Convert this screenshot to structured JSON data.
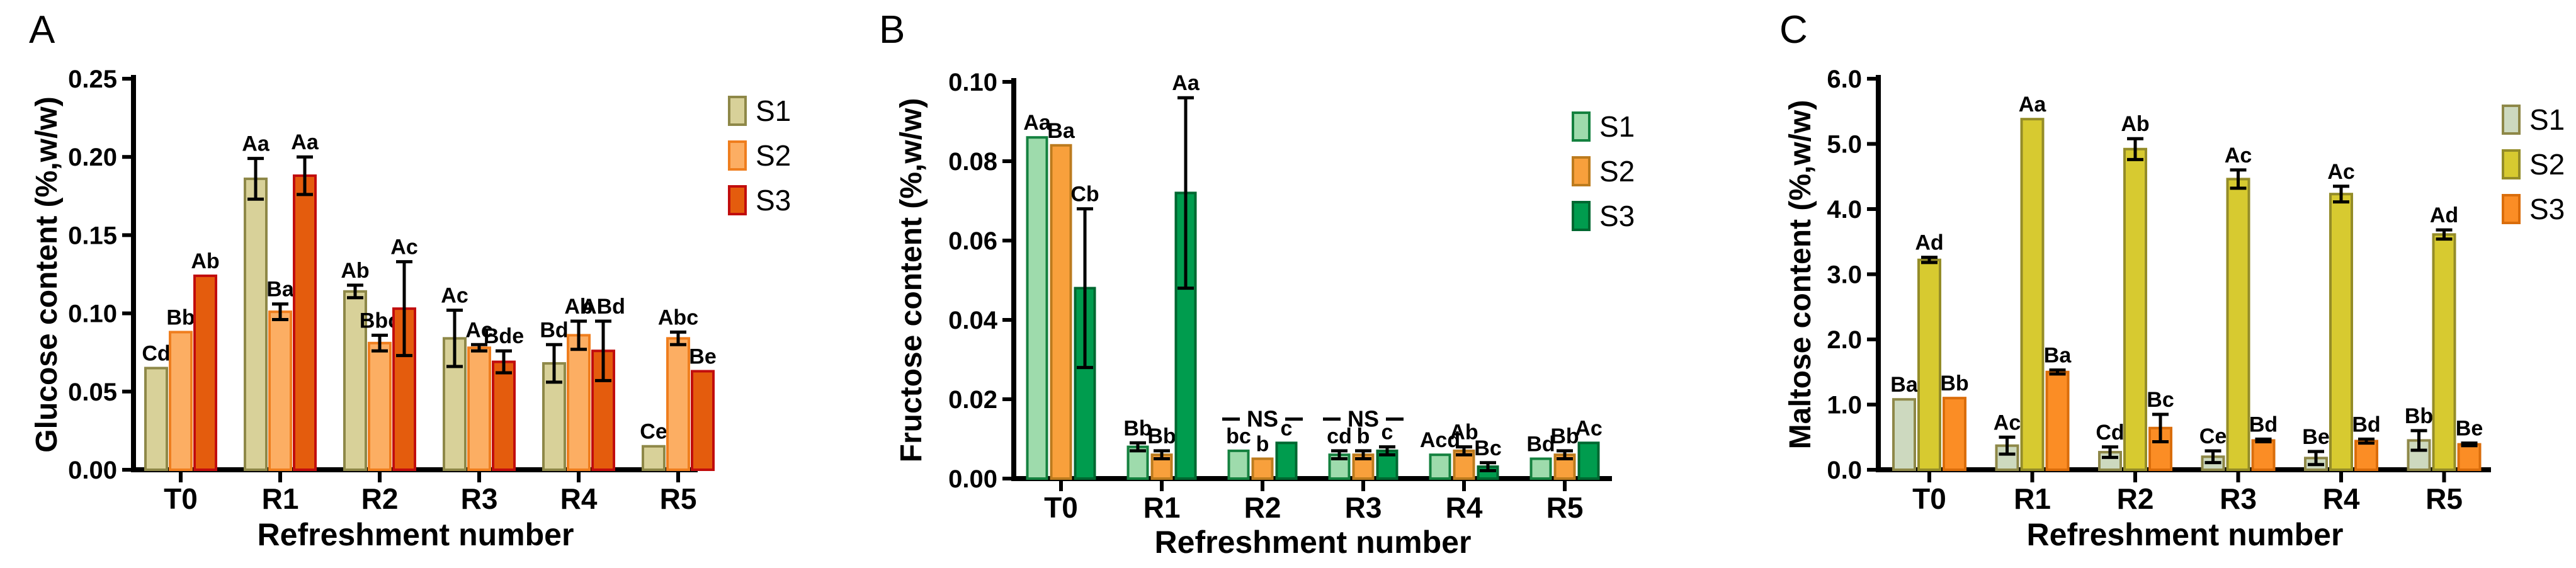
{
  "figure": {
    "background": "#ffffff",
    "x_axis_title": "Refreshment number",
    "categories": [
      "T0",
      "R1",
      "R2",
      "R3",
      "R4",
      "R5"
    ]
  },
  "chart_data": [
    {
      "type": "bar",
      "panel_letter": "A",
      "ylabel": "Glucose content (%,w/w)",
      "xlabel": "Refreshment number",
      "categories": [
        "T0",
        "R1",
        "R2",
        "R3",
        "R4",
        "R5"
      ],
      "ylim": [
        0,
        0.25
      ],
      "ytick_step": 0.05,
      "ytick_decimals": 2,
      "grid": false,
      "legend_position": "right",
      "series": [
        {
          "name": "S1",
          "fill": "#d8d199",
          "stroke": "#8e8848",
          "values": [
            0.065,
            0.186,
            0.114,
            0.084,
            0.068,
            0.015
          ],
          "errors": [
            0,
            0.013,
            0.004,
            0.018,
            0.012,
            0
          ],
          "labels": [
            "Cd",
            "Aa",
            "Ab",
            "Ac",
            "Bd",
            "Ce"
          ]
        },
        {
          "name": "S2",
          "fill": "#fcae63",
          "stroke": "#ef7e1e",
          "values": [
            0.088,
            0.101,
            0.081,
            0.078,
            0.086,
            0.084
          ],
          "errors": [
            0,
            0.005,
            0.005,
            0.002,
            0.009,
            0.004
          ],
          "labels": [
            "Bb",
            "Ba",
            "Bbc",
            "Ac",
            "Ab",
            "Abc"
          ]
        },
        {
          "name": "S3",
          "fill": "#e45c0d",
          "stroke": "#c10d0d",
          "values": [
            0.124,
            0.188,
            0.103,
            0.069,
            0.076,
            0.063
          ],
          "errors": [
            0,
            0.012,
            0.03,
            0.007,
            0.019,
            0
          ],
          "labels": [
            "Ab",
            "Aa",
            "Ac",
            "Bde",
            "ABd",
            "Be"
          ]
        }
      ],
      "ns_annotations": []
    },
    {
      "type": "bar",
      "panel_letter": "B",
      "ylabel": "Fructose content (%,w/w)",
      "xlabel": "Refreshment number",
      "categories": [
        "T0",
        "R1",
        "R2",
        "R3",
        "R4",
        "R5"
      ],
      "ylim": [
        0,
        0.1
      ],
      "ytick_step": 0.02,
      "ytick_decimals": 2,
      "grid": false,
      "legend_position": "right",
      "series": [
        {
          "name": "S1",
          "fill": "#9edbac",
          "stroke": "#14813f",
          "values": [
            0.086,
            0.008,
            0.007,
            0.006,
            0.006,
            0.005
          ],
          "errors": [
            0,
            0.001,
            0,
            0.001,
            0,
            0
          ],
          "labels": [
            "Aa",
            "Bb",
            "bc",
            "cd",
            "Acd",
            "Bd"
          ]
        },
        {
          "name": "S2",
          "fill": "#f8a03c",
          "stroke": "#bc7b1e",
          "values": [
            0.084,
            0.006,
            0.005,
            0.006,
            0.007,
            0.006
          ],
          "errors": [
            0,
            0.001,
            0,
            0.001,
            0.001,
            0.001
          ],
          "labels": [
            "Ba",
            "Bb",
            "b",
            "b",
            "Ab",
            "Bb"
          ]
        },
        {
          "name": "S3",
          "fill": "#009c4e",
          "stroke": "#006730",
          "values": [
            0.048,
            0.072,
            0.009,
            0.007,
            0.003,
            0.009
          ],
          "errors": [
            0.02,
            0.024,
            0,
            0.001,
            0.001,
            0
          ],
          "labels": [
            "Cb",
            "Aa",
            "c",
            "c",
            "Bc",
            "Ac"
          ]
        }
      ],
      "ns_annotations": [
        {
          "category_index": 2,
          "y": 0.015,
          "label": "NS"
        },
        {
          "category_index": 3,
          "y": 0.015,
          "label": "NS"
        }
      ]
    },
    {
      "type": "bar",
      "panel_letter": "C",
      "ylabel": "Maltose content (%,w/w)",
      "xlabel": "Refreshment number",
      "categories": [
        "T0",
        "R1",
        "R2",
        "R3",
        "R4",
        "R5"
      ],
      "ylim": [
        0,
        6.0
      ],
      "ytick_step": 1.0,
      "ytick_decimals": 1,
      "grid": false,
      "legend_position": "right",
      "series": [
        {
          "name": "S1",
          "fill": "#cdd9bf",
          "stroke": "#8e8848",
          "values": [
            1.08,
            0.37,
            0.27,
            0.2,
            0.18,
            0.45
          ],
          "errors": [
            0,
            0.13,
            0.08,
            0.09,
            0.1,
            0.15
          ],
          "labels": [
            "Ba",
            "Ac",
            "Cd",
            "Ce",
            "Be",
            "Bb"
          ]
        },
        {
          "name": "S2",
          "fill": "#d7ca30",
          "stroke": "#948c28",
          "values": [
            3.22,
            5.38,
            4.92,
            4.46,
            4.23,
            3.61
          ],
          "errors": [
            0.04,
            0,
            0.16,
            0.14,
            0.12,
            0.07
          ],
          "labels": [
            "Ad",
            "Aa",
            "Ab",
            "Ac",
            "Ac",
            "Ad"
          ]
        },
        {
          "name": "S3",
          "fill": "#fb8d25",
          "stroke": "#da6d0b",
          "values": [
            1.1,
            1.5,
            0.64,
            0.45,
            0.44,
            0.39
          ],
          "errors": [
            0,
            0.03,
            0.21,
            0.02,
            0.03,
            0.02
          ],
          "labels": [
            "Bb",
            "Ba",
            "Bc",
            "Bd",
            "Bd",
            "Be"
          ]
        }
      ],
      "ns_annotations": []
    }
  ]
}
